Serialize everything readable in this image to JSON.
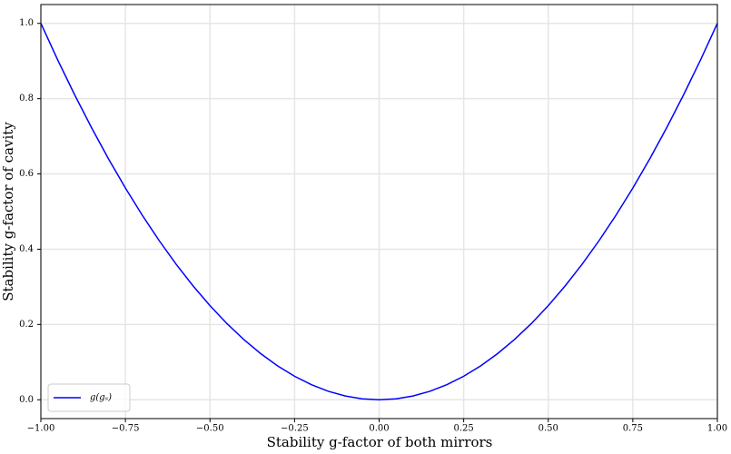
{
  "chart_data": {
    "type": "line",
    "xlabel": "Stability g-factor of both mirrors",
    "ylabel": "Stability g-factor of cavity",
    "x": [
      -1,
      -0.95,
      -0.9,
      -0.85,
      -0.8,
      -0.75,
      -0.7,
      -0.65,
      -0.6,
      -0.55,
      -0.5,
      -0.45,
      -0.4,
      -0.35,
      -0.3,
      -0.25,
      -0.2,
      -0.15,
      -0.1,
      -0.05,
      0,
      0.05,
      0.1,
      0.15,
      0.2,
      0.25,
      0.3,
      0.35,
      0.4,
      0.45,
      0.5,
      0.55,
      0.6,
      0.65,
      0.7,
      0.75,
      0.8,
      0.85,
      0.9,
      0.95,
      1
    ],
    "series": [
      {
        "name": "g(gₛ)",
        "color": "#0000ff",
        "values": [
          1,
          0.9025,
          0.81,
          0.7225,
          0.64,
          0.5625,
          0.49,
          0.4225,
          0.36,
          0.3025,
          0.25,
          0.2025,
          0.16,
          0.1225,
          0.09,
          0.0625,
          0.04,
          0.0225,
          0.01,
          0.0025,
          0,
          0.0025,
          0.01,
          0.0225,
          0.04,
          0.0625,
          0.09,
          0.1225,
          0.16,
          0.2025,
          0.25,
          0.3025,
          0.36,
          0.4225,
          0.49,
          0.5625,
          0.64,
          0.7225,
          0.81,
          0.9025,
          1
        ]
      }
    ],
    "xlim": [
      -1,
      1
    ],
    "ylim": [
      -0.05,
      1.05
    ],
    "xticks": [
      {
        "value": -1,
        "label": "−1.00"
      },
      {
        "value": -0.75,
        "label": "−0.75"
      },
      {
        "value": -0.5,
        "label": "−0.50"
      },
      {
        "value": -0.25,
        "label": "−0.25"
      },
      {
        "value": 0,
        "label": "0.00"
      },
      {
        "value": 0.25,
        "label": "0.25"
      },
      {
        "value": 0.5,
        "label": "0.50"
      },
      {
        "value": 0.75,
        "label": "0.75"
      },
      {
        "value": 1,
        "label": "1.00"
      }
    ],
    "yticks": [
      {
        "value": 0,
        "label": "0.0"
      },
      0.2,
      0.4,
      0.6,
      0.8,
      {
        "value": 1,
        "label": "1.0"
      }
    ],
    "grid": true,
    "legend": "lower left"
  }
}
